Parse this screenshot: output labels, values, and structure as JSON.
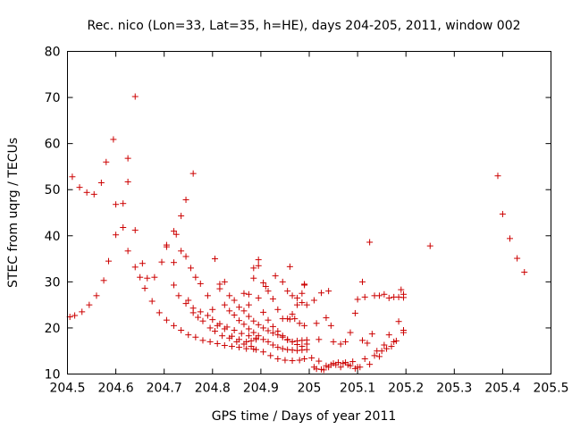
{
  "chart_data": {
    "type": "scatter",
    "title": "Rec. nico (Lon=33, Lat=35, h=HE), days 204-205, 2011, window 002",
    "xlabel": "GPS time / Days of year 2011",
    "ylabel": "STEC from uqrg / TECUs",
    "xlim": [
      204.5,
      205.5
    ],
    "ylim": [
      10,
      80
    ],
    "xticks": [
      204.5,
      204.6,
      204.7,
      204.8,
      204.9,
      205,
      205.1,
      205.2,
      205.3,
      205.4,
      205.5
    ],
    "xtick_labels": [
      "204.5",
      "204.6",
      "204.7",
      "204.8",
      "204.9",
      "205",
      "205.1",
      "205.2",
      "205.3",
      "205.4",
      "205.5"
    ],
    "yticks": [
      10,
      20,
      30,
      40,
      50,
      60,
      70,
      80
    ],
    "ytick_labels": [
      "10",
      "20",
      "30",
      "40",
      "50",
      "60",
      "70",
      "80"
    ],
    "grid": false,
    "marker": "+",
    "color": "#cc0000",
    "series": [
      {
        "name": "STEC",
        "points": [
          [
            204.505,
            22.4
          ],
          [
            204.515,
            22.7
          ],
          [
            204.53,
            23.5
          ],
          [
            204.545,
            25.0
          ],
          [
            204.56,
            27.0
          ],
          [
            204.575,
            30.3
          ],
          [
            204.585,
            34.5
          ],
          [
            204.6,
            40.2
          ],
          [
            204.615,
            41.8
          ],
          [
            204.625,
            36.7
          ],
          [
            204.64,
            33.2
          ],
          [
            204.65,
            31.0
          ],
          [
            204.66,
            28.6
          ],
          [
            204.675,
            25.8
          ],
          [
            204.69,
            23.3
          ],
          [
            204.705,
            21.7
          ],
          [
            204.72,
            20.5
          ],
          [
            204.735,
            19.5
          ],
          [
            204.75,
            18.5
          ],
          [
            204.765,
            18.0
          ],
          [
            204.78,
            17.3
          ],
          [
            204.795,
            17.0
          ],
          [
            204.81,
            16.6
          ],
          [
            204.825,
            16.2
          ],
          [
            204.84,
            16.0
          ],
          [
            204.855,
            15.8
          ],
          [
            204.87,
            15.5
          ],
          [
            204.885,
            15.4
          ],
          [
            204.51,
            52.8
          ],
          [
            204.525,
            50.5
          ],
          [
            204.54,
            49.4
          ],
          [
            204.555,
            49.0
          ],
          [
            204.57,
            51.5
          ],
          [
            204.58,
            56.0
          ],
          [
            204.595,
            60.9
          ],
          [
            204.6,
            46.8
          ],
          [
            204.615,
            47.0
          ],
          [
            204.625,
            51.7
          ],
          [
            204.625,
            56.8
          ],
          [
            204.64,
            70.2
          ],
          [
            204.64,
            41.2
          ],
          [
            204.655,
            34.0
          ],
          [
            204.665,
            30.8
          ],
          [
            204.68,
            31.0
          ],
          [
            204.695,
            34.3
          ],
          [
            204.705,
            38.0
          ],
          [
            204.72,
            41.0
          ],
          [
            204.735,
            44.3
          ],
          [
            204.745,
            47.8
          ],
          [
            204.76,
            53.5
          ],
          [
            204.705,
            37.6
          ],
          [
            204.72,
            34.2
          ],
          [
            204.72,
            29.3
          ],
          [
            204.73,
            27.0
          ],
          [
            204.745,
            25.3
          ],
          [
            204.76,
            24.3
          ],
          [
            204.775,
            23.5
          ],
          [
            204.79,
            22.7
          ],
          [
            204.8,
            21.8
          ],
          [
            204.815,
            20.9
          ],
          [
            204.83,
            20.2
          ],
          [
            204.845,
            19.5
          ],
          [
            204.86,
            18.8
          ],
          [
            204.875,
            18.3
          ],
          [
            204.89,
            17.8
          ],
          [
            204.725,
            40.3
          ],
          [
            204.735,
            36.7
          ],
          [
            204.745,
            35.5
          ],
          [
            204.755,
            33.0
          ],
          [
            204.765,
            31.0
          ],
          [
            204.775,
            29.6
          ],
          [
            204.79,
            27.0
          ],
          [
            204.8,
            24.0
          ],
          [
            204.81,
            20.5
          ],
          [
            204.825,
            19.8
          ],
          [
            204.84,
            18.2
          ],
          [
            204.855,
            17.5
          ],
          [
            204.87,
            17.0
          ],
          [
            204.88,
            17.2
          ],
          [
            204.89,
            17.5
          ],
          [
            204.75,
            26.0
          ],
          [
            204.76,
            23.3
          ],
          [
            204.77,
            22.3
          ],
          [
            204.78,
            21.5
          ],
          [
            204.795,
            20.0
          ],
          [
            204.805,
            19.3
          ],
          [
            204.82,
            18.3
          ],
          [
            204.835,
            17.8
          ],
          [
            204.85,
            17.0
          ],
          [
            204.865,
            16.5
          ],
          [
            204.88,
            16.0
          ],
          [
            204.89,
            15.3
          ],
          [
            204.905,
            14.8
          ],
          [
            204.92,
            14.0
          ],
          [
            204.935,
            13.3
          ],
          [
            204.95,
            13.0
          ],
          [
            204.965,
            12.9
          ],
          [
            204.98,
            13.0
          ],
          [
            204.99,
            13.3
          ],
          [
            204.805,
            35.0
          ],
          [
            204.815,
            29.5
          ],
          [
            204.825,
            30.0
          ],
          [
            204.835,
            27.0
          ],
          [
            204.845,
            26.0
          ],
          [
            204.855,
            24.5
          ],
          [
            204.865,
            23.7
          ],
          [
            204.875,
            22.5
          ],
          [
            204.885,
            21.5
          ],
          [
            204.895,
            20.7
          ],
          [
            204.905,
            20.0
          ],
          [
            204.915,
            19.4
          ],
          [
            204.925,
            18.9
          ],
          [
            204.935,
            18.5
          ],
          [
            204.945,
            18.0
          ],
          [
            204.955,
            17.4
          ],
          [
            204.965,
            17.0
          ],
          [
            204.975,
            17.2
          ],
          [
            204.985,
            17.3
          ],
          [
            204.995,
            17.4
          ],
          [
            204.815,
            28.5
          ],
          [
            204.825,
            25.0
          ],
          [
            204.835,
            23.7
          ],
          [
            204.845,
            22.8
          ],
          [
            204.855,
            21.6
          ],
          [
            204.865,
            20.8
          ],
          [
            204.875,
            19.8
          ],
          [
            204.885,
            19.0
          ],
          [
            204.895,
            18.3
          ],
          [
            204.905,
            17.5
          ],
          [
            204.915,
            17.0
          ],
          [
            204.925,
            16.3
          ],
          [
            204.935,
            15.8
          ],
          [
            204.945,
            15.5
          ],
          [
            204.955,
            15.3
          ],
          [
            204.965,
            15.2
          ],
          [
            204.975,
            15.1
          ],
          [
            204.985,
            15.2
          ],
          [
            204.995,
            15.3
          ],
          [
            204.865,
            27.5
          ],
          [
            204.875,
            27.3
          ],
          [
            204.885,
            33.0
          ],
          [
            204.895,
            34.8
          ],
          [
            204.895,
            33.5
          ],
          [
            204.905,
            29.8
          ],
          [
            204.915,
            28.0
          ],
          [
            204.925,
            26.3
          ],
          [
            204.935,
            24.0
          ],
          [
            204.945,
            22.0
          ],
          [
            204.955,
            22.0
          ],
          [
            204.965,
            23.0
          ],
          [
            204.975,
            25.0
          ],
          [
            204.985,
            27.5
          ],
          [
            204.99,
            29.5
          ],
          [
            204.875,
            25.0
          ],
          [
            204.885,
            30.8
          ],
          [
            204.895,
            26.5
          ],
          [
            204.905,
            23.4
          ],
          [
            204.915,
            21.7
          ],
          [
            204.925,
            20.3
          ],
          [
            204.935,
            19.3
          ],
          [
            204.945,
            18.3
          ],
          [
            204.955,
            17.5
          ],
          [
            204.965,
            17.0
          ],
          [
            204.975,
            16.4
          ],
          [
            204.985,
            16.0
          ],
          [
            204.995,
            16.5
          ],
          [
            204.91,
            29.0
          ],
          [
            204.93,
            31.3
          ],
          [
            204.945,
            30.0
          ],
          [
            204.955,
            28.0
          ],
          [
            204.965,
            27.0
          ],
          [
            204.975,
            26.5
          ],
          [
            204.985,
            25.5
          ],
          [
            204.995,
            25.0
          ],
          [
            204.96,
            33.3
          ],
          [
            204.99,
            29.3
          ],
          [
            204.96,
            21.9
          ],
          [
            204.97,
            22.0
          ],
          [
            204.98,
            21.0
          ],
          [
            204.99,
            20.5
          ],
          [
            205.01,
            26.0
          ],
          [
            205.025,
            27.6
          ],
          [
            205.04,
            28.0
          ],
          [
            205.015,
            21.0
          ],
          [
            205.02,
            17.5
          ],
          [
            205.035,
            22.2
          ],
          [
            205.045,
            20.5
          ],
          [
            205.05,
            17.0
          ],
          [
            205.065,
            16.5
          ],
          [
            205.075,
            17.0
          ],
          [
            205.085,
            19.0
          ],
          [
            205.095,
            23.2
          ],
          [
            205.1,
            26.2
          ],
          [
            205.11,
            30.0
          ],
          [
            205.115,
            26.7
          ],
          [
            205.125,
            38.6
          ],
          [
            205.135,
            27.0
          ],
          [
            205.145,
            27.0
          ],
          [
            205.155,
            27.3
          ],
          [
            205.165,
            26.5
          ],
          [
            205.175,
            26.7
          ],
          [
            205.185,
            26.7
          ],
          [
            205.19,
            28.3
          ],
          [
            205.195,
            26.6
          ],
          [
            205.195,
            27.3
          ],
          [
            205.005,
            13.5
          ],
          [
            205.01,
            11.5
          ],
          [
            205.015,
            11.1
          ],
          [
            205.02,
            12.8
          ],
          [
            205.025,
            11.0
          ],
          [
            205.035,
            11.8
          ],
          [
            205.045,
            12.0
          ],
          [
            205.05,
            12.3
          ],
          [
            205.06,
            12.5
          ],
          [
            205.07,
            12.3
          ],
          [
            205.08,
            12.0
          ],
          [
            205.09,
            12.7
          ],
          [
            205.1,
            11.5
          ],
          [
            205.115,
            13.3
          ],
          [
            205.125,
            12.1
          ],
          [
            205.135,
            14.0
          ],
          [
            205.145,
            13.8
          ],
          [
            205.155,
            16.3
          ],
          [
            205.165,
            18.5
          ],
          [
            205.175,
            17.0
          ],
          [
            205.185,
            21.4
          ],
          [
            205.195,
            19.0
          ],
          [
            205.03,
            10.9
          ],
          [
            205.04,
            11.5
          ],
          [
            205.055,
            12.0
          ],
          [
            205.065,
            11.5
          ],
          [
            205.075,
            12.5
          ],
          [
            205.085,
            11.8
          ],
          [
            205.095,
            11.2
          ],
          [
            205.105,
            11.5
          ],
          [
            205.11,
            17.3
          ],
          [
            205.12,
            16.7
          ],
          [
            205.13,
            18.7
          ],
          [
            205.14,
            15.0
          ],
          [
            205.15,
            15.0
          ],
          [
            205.16,
            15.5
          ],
          [
            205.17,
            16.0
          ],
          [
            205.18,
            17.2
          ],
          [
            205.195,
            19.5
          ],
          [
            205.25,
            37.8
          ],
          [
            205.39,
            53.0
          ],
          [
            205.4,
            44.7
          ],
          [
            205.415,
            39.4
          ],
          [
            205.43,
            35.1
          ],
          [
            205.445,
            32.1
          ]
        ]
      }
    ]
  }
}
